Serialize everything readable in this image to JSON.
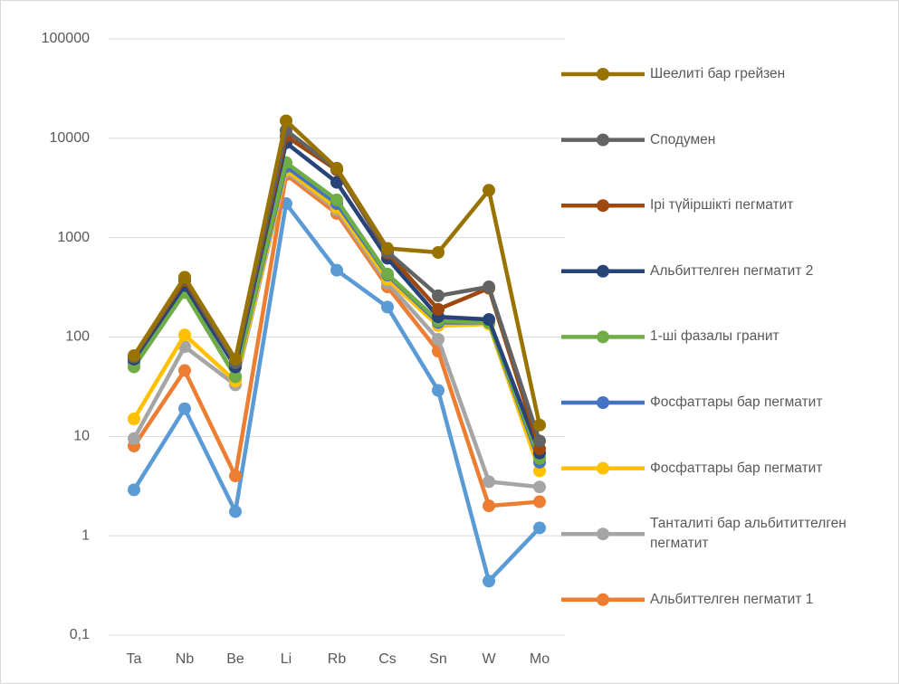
{
  "chart_data": {
    "type": "line",
    "log_scale": true,
    "grid": true,
    "legend": "right",
    "categories": [
      "Ta",
      "Nb",
      "Be",
      "Li",
      "Rb",
      "Cs",
      "Sn",
      "W",
      "Mo"
    ],
    "ylim": [
      0.1,
      100000
    ],
    "yticks": [
      {
        "value": 0.1,
        "label": "0,1"
      },
      1,
      10,
      100,
      1000,
      10000,
      100000
    ],
    "series": [
      {
        "name": "Шеелиті бар грейзен",
        "color": "#997300",
        "values": [
          65,
          400,
          60,
          15000,
          5000,
          780,
          710,
          3000,
          13
        ]
      },
      {
        "name": "Сподумен",
        "color": "#636363",
        "values": [
          63,
          390,
          55,
          12000,
          4900,
          720,
          260,
          320,
          9
        ]
      },
      {
        "name": "Ірі түйіршікті пегматит",
        "color": "#9e480e",
        "values": [
          63,
          370,
          55,
          10500,
          4800,
          700,
          190,
          310,
          7.5
        ]
      },
      {
        "name": "Альбиттелген пегматит 2",
        "color": "#264478",
        "values": [
          60,
          330,
          50,
          9000,
          3600,
          620,
          160,
          150,
          6.8
        ]
      },
      {
        "name": "1-ші фазалы гранит",
        "color": "#70ad47",
        "values": [
          50,
          280,
          40,
          5700,
          2400,
          430,
          145,
          140,
          6
        ]
      },
      {
        "name": "Фосфаттары бар пегматит",
        "color": "#4472c4",
        "values": [
          55,
          290,
          40,
          5200,
          2200,
          420,
          140,
          140,
          5.5
        ]
      },
      {
        "name": "Фосфаттары бар пегматит",
        "color": "#ffc000",
        "values": [
          15,
          105,
          36,
          4800,
          2000,
          380,
          130,
          135,
          4.5
        ]
      },
      {
        "name": "Танталиті бар альбититтелген пегматит",
        "color": "#a5a5a5",
        "values": [
          9.5,
          80,
          33,
          4600,
          1900,
          350,
          95,
          3.5,
          3.1
        ]
      },
      {
        "name": "Альбиттелген пегматит 1",
        "color": "#ed7d31",
        "values": [
          8,
          46,
          4,
          4300,
          1750,
          320,
          72,
          2,
          2.2
        ]
      },
      {
        "color": "#5b9bd5",
        "values": [
          2.9,
          19,
          1.75,
          2200,
          470,
          200,
          29,
          0.35,
          1.2
        ]
      }
    ]
  }
}
